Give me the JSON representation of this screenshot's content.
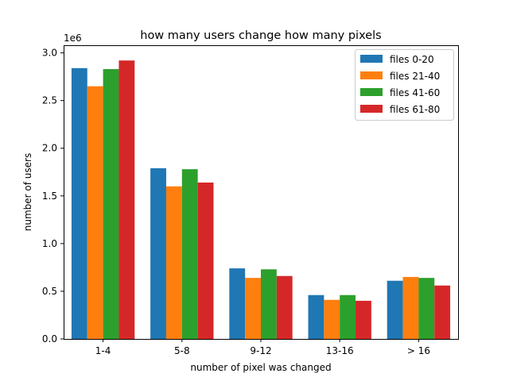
{
  "chart_data": {
    "type": "bar",
    "title": "how many users change how many pixels",
    "xlabel": "number of pixel was changed",
    "ylabel": "number of users",
    "y_scale_label": "1e6",
    "ylim": [
      0,
      3.08
    ],
    "yticks": [
      "0.0",
      "0.5",
      "1.0",
      "1.5",
      "2.0",
      "2.5",
      "3.0"
    ],
    "categories": [
      "1-4",
      "5-8",
      "9-12",
      "13-16",
      "> 16"
    ],
    "legend_position": "top-right",
    "grid": false,
    "series": [
      {
        "name": "files 0-20",
        "color": "#1f77b4",
        "values": [
          2.84,
          1.79,
          0.74,
          0.46,
          0.61
        ]
      },
      {
        "name": "files 21-40",
        "color": "#ff7f0e",
        "values": [
          2.65,
          1.6,
          0.64,
          0.41,
          0.65
        ]
      },
      {
        "name": "files 41-60",
        "color": "#2ca02c",
        "values": [
          2.83,
          1.78,
          0.73,
          0.46,
          0.64
        ]
      },
      {
        "name": "files 61-80",
        "color": "#d62728",
        "values": [
          2.92,
          1.64,
          0.66,
          0.4,
          0.56
        ]
      }
    ]
  }
}
